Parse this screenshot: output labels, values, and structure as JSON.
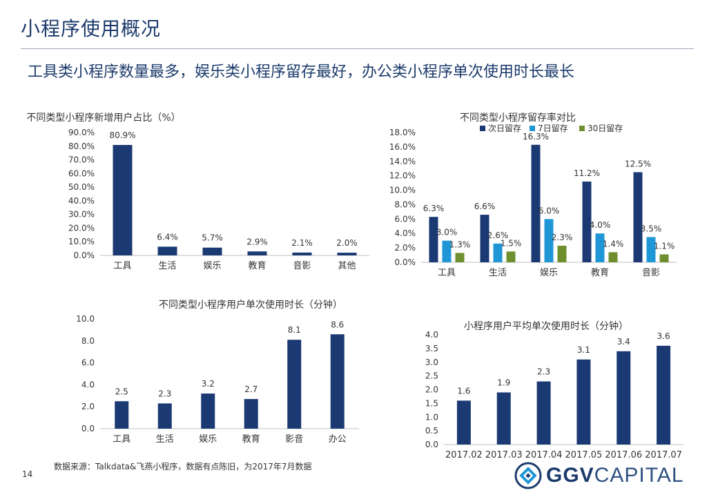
{
  "header": {
    "title": "小程序使用概况",
    "subtitle": "工具类小程序数量最多，娱乐类小程序留存最好，办公类小程序单次使用时长最长"
  },
  "colors": {
    "navy": "#1b3a73",
    "cyan": "#1f96d6",
    "olive": "#6f8f2f",
    "axis": "#bfbfbf"
  },
  "chart_data": [
    {
      "id": "new-users",
      "type": "bar",
      "title": "不同类型小程序新增用户占比（%）",
      "categories": [
        "工具",
        "生活",
        "娱乐",
        "教育",
        "音影",
        "其他"
      ],
      "values": [
        80.9,
        6.4,
        5.7,
        2.9,
        2.1,
        2.0
      ],
      "data_labels": [
        "80.9%",
        "6.4%",
        "5.7%",
        "2.9%",
        "2.1%",
        "2.0%"
      ],
      "ylim": [
        0,
        90
      ],
      "ticks": [
        "0.0%",
        "10.0%",
        "20.0%",
        "30.0%",
        "40.0%",
        "50.0%",
        "60.0%",
        "70.0%",
        "80.0%",
        "90.0%"
      ],
      "tick_step": 10,
      "grid": false
    },
    {
      "id": "retention",
      "type": "bar",
      "title": "不同类型小程序留存率对比",
      "categories": [
        "工具",
        "生活",
        "娱乐",
        "教育",
        "音影"
      ],
      "series": [
        {
          "name": "次日留存",
          "color": "#1b3a73",
          "values": [
            6.3,
            6.6,
            16.3,
            11.2,
            12.5
          ],
          "data_labels": [
            "6.3%",
            "6.6%",
            "16.3%",
            "11.2%",
            "12.5%"
          ]
        },
        {
          "name": "7日留存",
          "color": "#1f96d6",
          "values": [
            3.0,
            2.6,
            6.0,
            4.0,
            3.5
          ],
          "data_labels": [
            "3.0%",
            "2.6%",
            "6.0%",
            "4.0%",
            "3.5%"
          ]
        },
        {
          "name": "30日留存",
          "color": "#6f8f2f",
          "values": [
            1.3,
            1.5,
            2.3,
            1.4,
            1.1
          ],
          "data_labels": [
            "1.3%",
            "1.5%",
            "2.3%",
            "1.4%",
            "1.1%"
          ]
        }
      ],
      "ylim": [
        0,
        18
      ],
      "ticks": [
        "0.0%",
        "2.0%",
        "4.0%",
        "6.0%",
        "8.0%",
        "10.0%",
        "12.0%",
        "14.0%",
        "16.0%",
        "18.0%"
      ],
      "tick_step": 2,
      "legend": "bottom",
      "grid": false
    },
    {
      "id": "session-by-type",
      "type": "bar",
      "title": "不同类型小程序用户单次使用时长（分钟）",
      "categories": [
        "工具",
        "生活",
        "娱乐",
        "教育",
        "影音",
        "办公"
      ],
      "values": [
        2.5,
        2.3,
        3.2,
        2.7,
        8.1,
        8.6
      ],
      "data_labels": [
        "2.5",
        "2.3",
        "3.2",
        "2.7",
        "8.1",
        "8.6"
      ],
      "ylim": [
        0,
        10
      ],
      "ticks": [
        "0.0",
        "2.0",
        "4.0",
        "6.0",
        "8.0",
        "10.0"
      ],
      "tick_step": 2,
      "grid": false
    },
    {
      "id": "avg-session-trend",
      "type": "bar",
      "title": "小程序用户平均单次使用时长（分钟）",
      "categories": [
        "2017.02",
        "2017.03",
        "2017.04",
        "2017.05",
        "2017.06",
        "2017.07"
      ],
      "values": [
        1.6,
        1.9,
        2.3,
        3.1,
        3.4,
        3.6
      ],
      "data_labels": [
        "1.6",
        "1.9",
        "2.3",
        "3.1",
        "3.4",
        "3.6"
      ],
      "ylim": [
        0,
        4
      ],
      "ticks": [
        "0.0",
        "0.5",
        "1.0",
        "1.5",
        "2.0",
        "2.5",
        "3.0",
        "3.5",
        "4.0"
      ],
      "tick_step": 0.5,
      "grid": false
    }
  ],
  "footer": {
    "source": "数据来源：Talkdata&飞燕小程序，数据有点陈旧，为2017年7月数据",
    "page_number": "14",
    "logo_bold": "GGV",
    "logo_light": "CAPITAL"
  }
}
